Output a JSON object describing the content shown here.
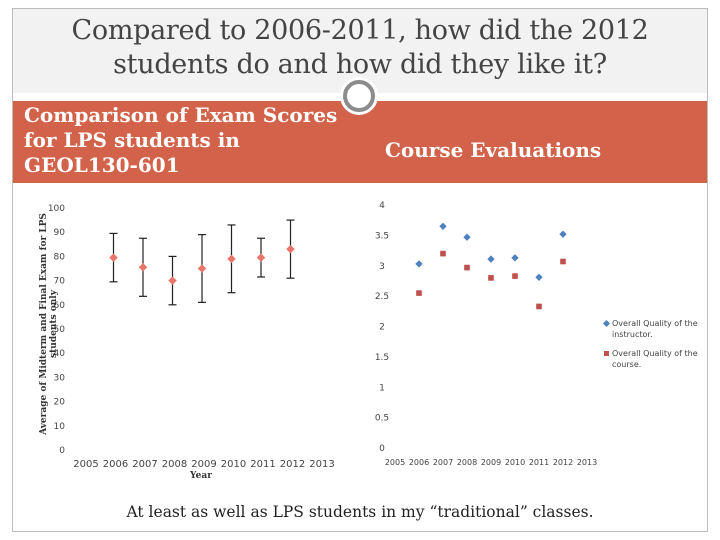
{
  "slide": {
    "title": "Compared to 2006-2011, how did the 2012\nstudents do and how did they like it?",
    "left_heading": "Comparison of Exam Scores for LPS students in GEOL130-601",
    "right_heading": "Course Evaluations",
    "footer": "At least as well as LPS students in my “traditional” classes.",
    "band_color": "#d2634a"
  },
  "chart_data": [
    {
      "type": "scatter",
      "title": "",
      "xlabel": "Year",
      "ylabel": "Average of Midterm and Final Exam for LPS students only",
      "ylim": [
        0,
        100
      ],
      "yticks": [
        "0",
        "10",
        "20",
        "30",
        "40",
        "50",
        "60",
        "70",
        "80",
        "90",
        "100"
      ],
      "xticks": [
        "2005",
        "2006",
        "2007",
        "2008",
        "2009",
        "2010",
        "2011",
        "2012",
        "2013"
      ],
      "grid": false,
      "series": [
        {
          "color": "#e8766a",
          "x": [
            2006,
            2007,
            2008,
            2009,
            2010,
            2011,
            2012
          ],
          "y": [
            79.5,
            75.5,
            70,
            75,
            79,
            79.5,
            83
          ],
          "error": [
            10,
            12,
            10,
            14,
            14,
            8,
            12
          ]
        }
      ]
    },
    {
      "type": "scatter",
      "title": "",
      "ylim": [
        0,
        4
      ],
      "yticks": [
        "0",
        "0.5",
        "1",
        "1.5",
        "2",
        "2.5",
        "3",
        "3.5",
        "4"
      ],
      "xticks": [
        "2005",
        "2006",
        "2007",
        "2008",
        "2009",
        "2010",
        "2011",
        "2012",
        "2013"
      ],
      "legend": "right",
      "grid": false,
      "series": [
        {
          "name": "Overall Quality of the instructor.",
          "color": "#4f81bd",
          "marker": "diamond",
          "x": [
            2006,
            2007,
            2008,
            2009,
            2010,
            2011,
            2012
          ],
          "y": [
            3.03,
            3.65,
            3.47,
            3.11,
            3.13,
            2.81,
            3.52
          ]
        },
        {
          "name": "Overall Quality of the course.",
          "color": "#c0504d",
          "marker": "square",
          "x": [
            2006,
            2007,
            2008,
            2009,
            2010,
            2011,
            2012
          ],
          "y": [
            2.55,
            3.2,
            2.97,
            2.8,
            2.83,
            2.33,
            3.07
          ]
        }
      ]
    }
  ]
}
